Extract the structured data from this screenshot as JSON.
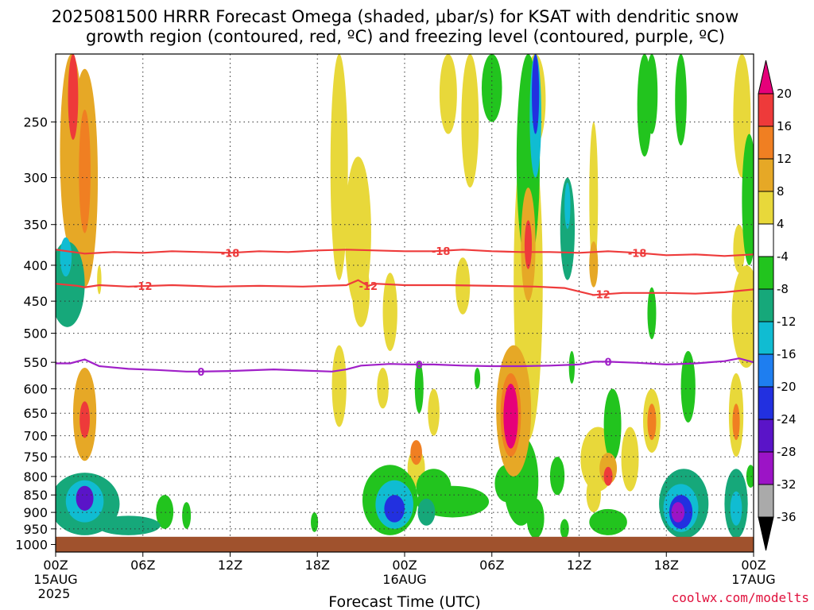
{
  "title_line1": "2025081500 HRRR Forecast Omega (shaded, μbar/s) for KSAT with dendritic snow",
  "title_line2": "growth region (contoured, red, ºC) and freezing level (contoured, purple, ºC)",
  "credit": "coolwx.com/modelts",
  "chart_data": {
    "type": "heatmap",
    "title": "2025081500 HRRR Forecast Omega (shaded, μbar/s) for KSAT with dendritic snow growth region (contoured, red, ºC) and freezing level (contoured, purple, ºC)",
    "xlabel": "Forecast Time (UTC)",
    "ylabel": "",
    "x_range_hours": [
      0,
      48
    ],
    "x_ticks": [
      {
        "hour": 0,
        "label": "00Z",
        "sub1": "15AUG",
        "sub2": "2025"
      },
      {
        "hour": 6,
        "label": "06Z"
      },
      {
        "hour": 12,
        "label": "12Z"
      },
      {
        "hour": 18,
        "label": "18Z"
      },
      {
        "hour": 24,
        "label": "00Z",
        "sub1": "16AUG"
      },
      {
        "hour": 30,
        "label": "06Z"
      },
      {
        "hour": 36,
        "label": "12Z"
      },
      {
        "hour": 42,
        "label": "18Z"
      },
      {
        "hour": 48,
        "label": "00Z",
        "sub1": "17AUG"
      }
    ],
    "y_ticks_hpa": [
      250,
      300,
      350,
      400,
      450,
      500,
      550,
      600,
      650,
      700,
      750,
      800,
      850,
      900,
      950,
      1000
    ],
    "y_range_hpa": [
      200,
      1025
    ],
    "y_scale": "log",
    "grid": true,
    "ground_below_hpa": 975,
    "colorbar": {
      "levels": [
        20,
        16,
        12,
        8,
        4,
        -4,
        -8,
        -12,
        -16,
        -20,
        -24,
        -28,
        -32,
        -36
      ],
      "colors": [
        "#e6007a",
        "#ee3a3a",
        "#f07f22",
        "#e6a826",
        "#e8d83a",
        "#ffffff",
        "#22c41e",
        "#16a87a",
        "#10bcd2",
        "#1e7ef0",
        "#2230e0",
        "#5a14c8",
        "#9c14c6",
        "#aaaaaa",
        "#000000"
      ]
    },
    "contours": [
      {
        "name": "-18",
        "color": "#ee3b3b",
        "points": [
          [
            0,
            380
          ],
          [
            2,
            385
          ],
          [
            4,
            383
          ],
          [
            6,
            384
          ],
          [
            8,
            382
          ],
          [
            10,
            383
          ],
          [
            12,
            384
          ],
          [
            14,
            382
          ],
          [
            16,
            383
          ],
          [
            18,
            381
          ],
          [
            20,
            380
          ],
          [
            22,
            381
          ],
          [
            24,
            382
          ],
          [
            26,
            382
          ],
          [
            28,
            380
          ],
          [
            30,
            382
          ],
          [
            32,
            383
          ],
          [
            34,
            383
          ],
          [
            36,
            384
          ],
          [
            38,
            382
          ],
          [
            40,
            384
          ],
          [
            42,
            387
          ],
          [
            44,
            386
          ],
          [
            46,
            388
          ],
          [
            48,
            386
          ]
        ],
        "labels": [
          12,
          26.5,
          40
        ]
      },
      {
        "name": "-12",
        "color": "#ee3b3b",
        "points": [
          [
            0,
            425
          ],
          [
            1.5,
            428
          ],
          [
            2,
            430
          ],
          [
            3,
            427
          ],
          [
            5,
            429
          ],
          [
            8,
            427
          ],
          [
            11,
            429
          ],
          [
            14,
            428
          ],
          [
            17,
            429
          ],
          [
            20,
            427
          ],
          [
            20.8,
            420
          ],
          [
            21.5,
            428
          ],
          [
            22,
            425
          ],
          [
            24,
            427
          ],
          [
            27,
            427
          ],
          [
            30,
            428
          ],
          [
            33,
            429
          ],
          [
            35,
            431
          ],
          [
            37,
            441
          ],
          [
            39,
            438
          ],
          [
            42,
            438
          ],
          [
            44,
            439
          ],
          [
            46,
            437
          ],
          [
            48,
            433
          ]
        ],
        "labels": [
          6,
          21.5,
          37.5
        ]
      },
      {
        "name": "0",
        "color": "#a020c8",
        "points": [
          [
            0,
            552
          ],
          [
            1,
            552
          ],
          [
            2,
            545
          ],
          [
            3,
            557
          ],
          [
            5,
            562
          ],
          [
            7,
            564
          ],
          [
            9,
            567
          ],
          [
            10,
            567
          ],
          [
            12,
            566
          ],
          [
            15,
            563
          ],
          [
            17,
            565
          ],
          [
            19,
            567
          ],
          [
            20,
            563
          ],
          [
            21,
            556
          ],
          [
            23,
            553
          ],
          [
            24.5,
            554
          ],
          [
            26,
            554
          ],
          [
            28,
            556
          ],
          [
            30,
            557
          ],
          [
            32,
            557
          ],
          [
            34,
            556
          ],
          [
            36,
            554
          ],
          [
            37,
            549
          ],
          [
            38,
            549
          ],
          [
            40,
            551
          ],
          [
            42,
            554
          ],
          [
            44,
            552
          ],
          [
            46,
            548
          ],
          [
            47,
            543
          ],
          [
            48,
            550
          ]
        ],
        "labels": [
          10,
          25,
          38
        ]
      }
    ],
    "omega_blobs": [
      {
        "t": 1.1,
        "p": 250,
        "dt": 0.8,
        "dp": 130,
        "v": 10
      },
      {
        "t": 1.2,
        "p": 230,
        "dt": 0.35,
        "dp": 35,
        "v": 16
      },
      {
        "t": 2.0,
        "p": 320,
        "dt": 0.9,
        "dp": 110,
        "v": 8
      },
      {
        "t": 2.0,
        "p": 300,
        "dt": 0.4,
        "dp": 60,
        "v": 14
      },
      {
        "t": 0.8,
        "p": 430,
        "dt": 1.2,
        "dp": 60,
        "v": -10
      },
      {
        "t": 0.7,
        "p": 390,
        "dt": 0.4,
        "dp": 25,
        "v": -13
      },
      {
        "t": 3.0,
        "p": 420,
        "dt": 0.15,
        "dp": 20,
        "v": 5
      },
      {
        "t": 2.0,
        "p": 660,
        "dt": 0.8,
        "dp": 100,
        "v": 9
      },
      {
        "t": 2.0,
        "p": 665,
        "dt": 0.35,
        "dp": 40,
        "v": 17
      },
      {
        "t": 2.0,
        "p": 880,
        "dt": 2.4,
        "dp": 90,
        "v": -9
      },
      {
        "t": 2.0,
        "p": 870,
        "dt": 1.3,
        "dp": 60,
        "v": -15
      },
      {
        "t": 2.0,
        "p": 860,
        "dt": 0.6,
        "dp": 35,
        "v": -25
      },
      {
        "t": 5.0,
        "p": 940,
        "dt": 2.2,
        "dp": 30,
        "v": -9
      },
      {
        "t": 7.5,
        "p": 900,
        "dt": 0.6,
        "dp": 50,
        "v": -7
      },
      {
        "t": 9.0,
        "p": 910,
        "dt": 0.3,
        "dp": 40,
        "v": -7
      },
      {
        "t": 19.5,
        "p": 310,
        "dt": 0.6,
        "dp": 110,
        "v": 6
      },
      {
        "t": 20.8,
        "p": 370,
        "dt": 0.9,
        "dp": 90,
        "v": 7
      },
      {
        "t": 21.0,
        "p": 440,
        "dt": 0.6,
        "dp": 50,
        "v": 6
      },
      {
        "t": 19.5,
        "p": 600,
        "dt": 0.5,
        "dp": 80,
        "v": 6
      },
      {
        "t": 17.8,
        "p": 930,
        "dt": 0.25,
        "dp": 30,
        "v": -7
      },
      {
        "t": 23.0,
        "p": 470,
        "dt": 0.5,
        "dp": 60,
        "v": 5
      },
      {
        "t": 22.5,
        "p": 600,
        "dt": 0.4,
        "dp": 40,
        "v": 5
      },
      {
        "t": 23.0,
        "p": 870,
        "dt": 1.9,
        "dp": 100,
        "v": -8
      },
      {
        "t": 23.3,
        "p": 880,
        "dt": 1.3,
        "dp": 70,
        "v": -14
      },
      {
        "t": 23.3,
        "p": 890,
        "dt": 0.7,
        "dp": 40,
        "v": -21
      },
      {
        "t": 26.0,
        "p": 830,
        "dt": 1.2,
        "dp": 50,
        "v": -8
      },
      {
        "t": 27.3,
        "p": 870,
        "dt": 2.5,
        "dp": 45,
        "v": -7
      },
      {
        "t": 25.5,
        "p": 900,
        "dt": 0.6,
        "dp": 40,
        "v": -9
      },
      {
        "t": 24.8,
        "p": 780,
        "dt": 0.6,
        "dp": 50,
        "v": 6
      },
      {
        "t": 24.8,
        "p": 740,
        "dt": 0.4,
        "dp": 30,
        "v": 14
      },
      {
        "t": 26.0,
        "p": 650,
        "dt": 0.4,
        "dp": 50,
        "v": 5
      },
      {
        "t": 27.0,
        "p": 200,
        "dt": 0.6,
        "dp": 60,
        "v": 6
      },
      {
        "t": 28.5,
        "p": 250,
        "dt": 0.6,
        "dp": 60,
        "v": 5
      },
      {
        "t": 28.0,
        "p": 430,
        "dt": 0.5,
        "dp": 40,
        "v": 5
      },
      {
        "t": 25.0,
        "p": 600,
        "dt": 0.3,
        "dp": 50,
        "v": -7
      },
      {
        "t": 29.0,
        "p": 580,
        "dt": 0.2,
        "dp": 20,
        "v": -7
      },
      {
        "t": 31.0,
        "p": 820,
        "dt": 0.8,
        "dp": 50,
        "v": -7
      },
      {
        "t": 33.0,
        "p": 920,
        "dt": 0.6,
        "dp": 60,
        "v": -7
      },
      {
        "t": 30.0,
        "p": 200,
        "dt": 0.7,
        "dp": 50,
        "v": -7
      },
      {
        "t": 33.0,
        "p": 200,
        "dt": 0.7,
        "dp": 70,
        "v": 6
      },
      {
        "t": 32.5,
        "p": 280,
        "dt": 0.8,
        "dp": 120,
        "v": -8
      },
      {
        "t": 33.0,
        "p": 240,
        "dt": 0.4,
        "dp": 60,
        "v": -14
      },
      {
        "t": 33.0,
        "p": 230,
        "dt": 0.25,
        "dp": 30,
        "v": -22
      },
      {
        "t": 32.5,
        "p": 480,
        "dt": 1.0,
        "dp": 230,
        "v": 6
      },
      {
        "t": 32.5,
        "p": 380,
        "dt": 0.5,
        "dp": 70,
        "v": 11
      },
      {
        "t": 32.5,
        "p": 375,
        "dt": 0.25,
        "dp": 30,
        "v": 18
      },
      {
        "t": 31.5,
        "p": 660,
        "dt": 1.2,
        "dp": 140,
        "v": 9
      },
      {
        "t": 31.3,
        "p": 660,
        "dt": 0.7,
        "dp": 90,
        "v": 15
      },
      {
        "t": 31.3,
        "p": 660,
        "dt": 0.5,
        "dp": 70,
        "v": 21
      },
      {
        "t": 32.0,
        "p": 820,
        "dt": 1.2,
        "dp": 120,
        "v": -8
      },
      {
        "t": 35.2,
        "p": 360,
        "dt": 0.5,
        "dp": 60,
        "v": -9
      },
      {
        "t": 35.2,
        "p": 330,
        "dt": 0.2,
        "dp": 25,
        "v": -14
      },
      {
        "t": 35.5,
        "p": 560,
        "dt": 0.2,
        "dp": 30,
        "v": -7
      },
      {
        "t": 37.0,
        "p": 330,
        "dt": 0.3,
        "dp": 80,
        "v": 5
      },
      {
        "t": 37.0,
        "p": 400,
        "dt": 0.3,
        "dp": 30,
        "v": 9
      },
      {
        "t": 34.5,
        "p": 800,
        "dt": 0.5,
        "dp": 50,
        "v": -7
      },
      {
        "t": 37.3,
        "p": 760,
        "dt": 1.2,
        "dp": 80,
        "v": 6
      },
      {
        "t": 38.0,
        "p": 780,
        "dt": 0.6,
        "dp": 40,
        "v": 11
      },
      {
        "t": 38.0,
        "p": 800,
        "dt": 0.3,
        "dp": 25,
        "v": 18
      },
      {
        "t": 38.3,
        "p": 680,
        "dt": 0.6,
        "dp": 80,
        "v": -8
      },
      {
        "t": 37.0,
        "p": 850,
        "dt": 0.5,
        "dp": 50,
        "v": 6
      },
      {
        "t": 38.0,
        "p": 930,
        "dt": 1.3,
        "dp": 40,
        "v": -8
      },
      {
        "t": 39.5,
        "p": 760,
        "dt": 0.6,
        "dp": 80,
        "v": 6
      },
      {
        "t": 35.0,
        "p": 950,
        "dt": 0.3,
        "dp": 30,
        "v": -8
      },
      {
        "t": 40.5,
        "p": 200,
        "dt": 0.5,
        "dp": 80,
        "v": -8
      },
      {
        "t": 41.0,
        "p": 210,
        "dt": 0.4,
        "dp": 50,
        "v": -7
      },
      {
        "t": 41.0,
        "p": 470,
        "dt": 0.3,
        "dp": 40,
        "v": -7
      },
      {
        "t": 41.0,
        "p": 670,
        "dt": 0.6,
        "dp": 70,
        "v": 7
      },
      {
        "t": 41.0,
        "p": 670,
        "dt": 0.3,
        "dp": 40,
        "v": 12
      },
      {
        "t": 43.2,
        "p": 880,
        "dt": 1.7,
        "dp": 100,
        "v": -9
      },
      {
        "t": 43.0,
        "p": 890,
        "dt": 1.2,
        "dp": 70,
        "v": -16
      },
      {
        "t": 43.0,
        "p": 900,
        "dt": 0.8,
        "dp": 50,
        "v": -24
      },
      {
        "t": 42.8,
        "p": 900,
        "dt": 0.45,
        "dp": 30,
        "v": -31
      },
      {
        "t": 43.5,
        "p": 600,
        "dt": 0.5,
        "dp": 70,
        "v": -7
      },
      {
        "t": 43.0,
        "p": 230,
        "dt": 0.4,
        "dp": 40,
        "v": -7
      },
      {
        "t": 47.5,
        "p": 480,
        "dt": 1.0,
        "dp": 80,
        "v": 6
      },
      {
        "t": 47.0,
        "p": 380,
        "dt": 0.4,
        "dp": 30,
        "v": 5
      },
      {
        "t": 47.2,
        "p": 240,
        "dt": 0.6,
        "dp": 60,
        "v": 5
      },
      {
        "t": 47.7,
        "p": 330,
        "dt": 0.5,
        "dp": 70,
        "v": -8
      },
      {
        "t": 46.8,
        "p": 660,
        "dt": 0.5,
        "dp": 90,
        "v": 7
      },
      {
        "t": 46.8,
        "p": 670,
        "dt": 0.25,
        "dp": 40,
        "v": 12
      },
      {
        "t": 46.8,
        "p": 880,
        "dt": 0.8,
        "dp": 100,
        "v": -9
      },
      {
        "t": 46.8,
        "p": 890,
        "dt": 0.4,
        "dp": 50,
        "v": -16
      },
      {
        "t": 47.8,
        "p": 800,
        "dt": 0.3,
        "dp": 30,
        "v": -7
      }
    ]
  }
}
